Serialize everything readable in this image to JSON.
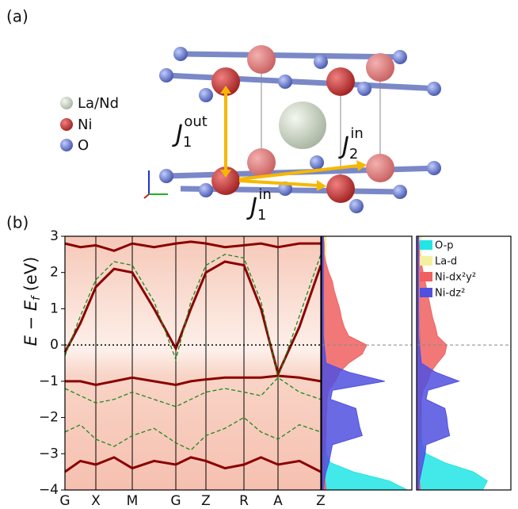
{
  "panel_a": {
    "label": "(a)",
    "legend": [
      "La/Nd",
      "Ni",
      "O"
    ],
    "couplings": [
      {
        "base": "J",
        "sub": "1",
        "sup": "out"
      },
      {
        "base": "J",
        "sub": "2",
        "sup": "in"
      },
      {
        "base": "J",
        "sub": "1",
        "sup": "in"
      }
    ]
  },
  "chart_data": {
    "type": "band",
    "label": "(b)",
    "ylabel": {
      "text": "E − E",
      "sub": "f",
      "unit": " (eV)"
    },
    "ylim": [
      -4,
      3
    ],
    "yticks": [
      {
        "value": -4,
        "label": "−4"
      },
      {
        "value": -3,
        "label": "−3"
      },
      {
        "value": -2,
        "label": "−2"
      },
      {
        "value": -1,
        "label": "−1"
      },
      0,
      1,
      2,
      3
    ],
    "xlim": [
      0,
      3.23
    ],
    "xticks": [
      {
        "value": 0,
        "label": "G"
      },
      {
        "value": 0.39,
        "label": "X"
      },
      {
        "value": 0.85,
        "label": "M"
      },
      {
        "value": 1.4,
        "label": "G"
      },
      {
        "value": 1.78,
        "label": "Z"
      },
      {
        "value": 2.26,
        "label": "R"
      },
      {
        "value": 2.69,
        "label": "A"
      },
      {
        "value": 3.23,
        "label": "Z"
      }
    ],
    "k": [
      0,
      0.195,
      0.39,
      0.62,
      0.85,
      1.125,
      1.4,
      1.59,
      1.78,
      2.02,
      2.26,
      2.475,
      2.69,
      2.96,
      3.23
    ],
    "bands": [
      {
        "color": "#8b0000",
        "values": [
          -0.2,
          0.6,
          1.6,
          2.1,
          2.0,
          1.0,
          -0.1,
          1.0,
          2.0,
          2.3,
          2.2,
          1.0,
          -0.8,
          0.5,
          2.2
        ]
      },
      {
        "color": "#8b0000",
        "values": [
          -1.0,
          -1.0,
          -1.1,
          -1.0,
          -0.9,
          -1.0,
          -1.1,
          -1.0,
          -0.95,
          -0.9,
          -0.9,
          -0.9,
          -0.85,
          -0.9,
          -1.0
        ]
      },
      {
        "color": "#8b0000",
        "values": [
          -3.5,
          -3.2,
          -3.3,
          -3.1,
          -3.4,
          -3.2,
          -3.3,
          -3.1,
          -3.2,
          -3.4,
          -3.3,
          -3.1,
          -3.3,
          -3.2,
          -3.5
        ]
      },
      {
        "color": "#8b0000",
        "values": [
          2.8,
          2.7,
          2.75,
          2.6,
          2.8,
          2.7,
          2.8,
          2.85,
          2.8,
          2.7,
          2.75,
          2.8,
          2.7,
          2.8,
          2.8
        ]
      }
    ],
    "dft_bands": [
      {
        "color": "#1a8a1a",
        "values": [
          -0.3,
          0.8,
          1.8,
          2.3,
          2.2,
          1.2,
          -0.4,
          1.2,
          2.2,
          2.5,
          2.4,
          1.2,
          -0.9,
          0.8,
          2.5
        ]
      },
      {
        "color": "#1a8a1a",
        "values": [
          -1.2,
          -1.4,
          -1.6,
          -1.5,
          -1.3,
          -1.5,
          -1.7,
          -1.5,
          -1.3,
          -1.2,
          -1.3,
          -1.4,
          -0.9,
          -1.3,
          -1.5
        ]
      },
      {
        "color": "#1a8a1a",
        "values": [
          -2.4,
          -2.2,
          -2.6,
          -2.8,
          -2.5,
          -2.3,
          -2.7,
          -2.9,
          -2.5,
          -2.3,
          -2.0,
          -2.4,
          -2.6,
          -2.2,
          -2.4
        ]
      }
    ],
    "dos": {
      "energy": [
        -4,
        -3.75,
        -3.5,
        -3.25,
        -3,
        -2.75,
        -2.5,
        -2.25,
        -2,
        -1.75,
        -1.5,
        -1.25,
        -1,
        -0.75,
        -0.5,
        -0.25,
        0,
        0.25,
        0.5,
        0.75,
        1,
        1.25,
        1.5,
        1.75,
        2,
        2.25,
        2.5,
        2.75,
        3
      ],
      "xlim": [
        0,
        1
      ],
      "series": [
        {
          "name": "O-p",
          "color": "#22e5e5",
          "values": [
            0.95,
            0.75,
            0.35,
            0.1,
            0.05,
            0.05,
            0.04,
            0.04,
            0.04,
            0.04,
            0.03,
            0.03,
            0.04,
            0.03,
            0.03,
            0.03,
            0.03,
            0.03,
            0.03,
            0.03,
            0.03,
            0.03,
            0.03,
            0.03,
            0.03,
            0.03,
            0.03,
            0.03,
            0.03
          ],
          "values2": [
            0.7,
            0.75,
            0.6,
            0.3,
            0.1,
            0.06,
            0.05,
            0.05,
            0.05,
            0.05,
            0.04,
            0.04,
            0.05,
            0.04,
            0.04,
            0.04,
            0.04,
            0.04,
            0.03,
            0.03,
            0.03,
            0.03,
            0.03,
            0.03,
            0.03,
            0.03,
            0.03,
            0.03,
            0.03
          ]
        },
        {
          "name": "La-d",
          "color": "#f5f0a0",
          "values": [
            0.02,
            0.02,
            0.02,
            0.02,
            0.02,
            0.02,
            0.02,
            0.02,
            0.02,
            0.02,
            0.02,
            0.02,
            0.02,
            0.02,
            0.02,
            0.02,
            0.02,
            0.02,
            0.02,
            0.02,
            0.03,
            0.03,
            0.03,
            0.04,
            0.04,
            0.04,
            0.05,
            0.05,
            0.05
          ],
          "values2": [
            0.02,
            0.02,
            0.02,
            0.02,
            0.02,
            0.02,
            0.02,
            0.02,
            0.02,
            0.02,
            0.02,
            0.02,
            0.02,
            0.02,
            0.02,
            0.02,
            0.02,
            0.02,
            0.02,
            0.02,
            0.03,
            0.03,
            0.03,
            0.04,
            0.04,
            0.04,
            0.05,
            0.05,
            0.05
          ]
        },
        {
          "name": "Ni-dx²y²",
          "color": "#f06060",
          "values": [
            0.05,
            0.04,
            0.03,
            0.03,
            0.03,
            0.04,
            0.05,
            0.05,
            0.05,
            0.06,
            0.06,
            0.08,
            0.15,
            0.2,
            0.3,
            0.45,
            0.5,
            0.3,
            0.25,
            0.22,
            0.2,
            0.17,
            0.14,
            0.12,
            0.08,
            0.05,
            0.03,
            0.03,
            0.02
          ],
          "values2": [
            0.04,
            0.03,
            0.03,
            0.03,
            0.03,
            0.03,
            0.04,
            0.04,
            0.04,
            0.05,
            0.05,
            0.07,
            0.12,
            0.15,
            0.22,
            0.3,
            0.32,
            0.22,
            0.2,
            0.17,
            0.15,
            0.13,
            0.11,
            0.09,
            0.07,
            0.05,
            0.03,
            0.03,
            0.02
          ]
        },
        {
          "name": "Ni-dz²",
          "color": "#5050e0",
          "values": [
            0.02,
            0.03,
            0.05,
            0.08,
            0.1,
            0.12,
            0.45,
            0.42,
            0.4,
            0.38,
            0.1,
            0.12,
            0.7,
            0.3,
            0.05,
            0.04,
            0.03,
            0.02,
            0.02,
            0.02,
            0.02,
            0.02,
            0.02,
            0.02,
            0.02,
            0.02,
            0.02,
            0.02,
            0.02
          ],
          "values2": [
            0.02,
            0.03,
            0.05,
            0.07,
            0.09,
            0.1,
            0.35,
            0.33,
            0.32,
            0.3,
            0.1,
            0.12,
            0.45,
            0.2,
            0.05,
            0.04,
            0.03,
            0.02,
            0.02,
            0.02,
            0.02,
            0.02,
            0.02,
            0.02,
            0.02,
            0.02,
            0.02,
            0.02,
            0.02
          ]
        }
      ]
    }
  }
}
